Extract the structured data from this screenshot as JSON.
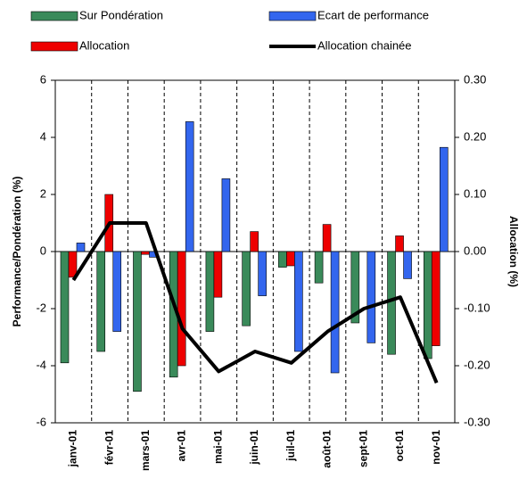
{
  "chart_data": {
    "type": "bar",
    "categories": [
      "janv-01",
      "févr-01",
      "mars-01",
      "avr-01",
      "mai-01",
      "juin-01",
      "juil-01",
      "août-01",
      "sept-01",
      "oct-01",
      "nov-01"
    ],
    "series": [
      {
        "name": "Sur Pondération",
        "type": "bar",
        "color": "#3a8a5a",
        "values": [
          -3.9,
          -3.5,
          -4.9,
          -4.4,
          -2.8,
          -2.6,
          -0.55,
          -1.1,
          -2.5,
          -3.6,
          -3.75
        ]
      },
      {
        "name": "Allocation",
        "type": "bar",
        "color": "#ee0000",
        "values": [
          -0.9,
          2.0,
          -0.1,
          -4.0,
          -1.6,
          0.7,
          -0.5,
          0.95,
          0,
          0.55,
          -3.3
        ]
      },
      {
        "name": "Ecart de performance",
        "type": "bar",
        "color": "#3366ee",
        "values": [
          0.3,
          -2.8,
          -0.2,
          4.55,
          2.55,
          -1.55,
          -3.5,
          -4.25,
          -3.2,
          -0.95,
          3.65
        ]
      },
      {
        "name": "Allocation chainée",
        "type": "line",
        "axis": "y2",
        "color": "#000000",
        "values": [
          -0.05,
          0.05,
          0.05,
          -0.135,
          -0.21,
          -0.175,
          -0.195,
          -0.14,
          -0.1,
          -0.08,
          -0.23
        ]
      }
    ],
    "ylabel": "Performance/Pondération (%)",
    "y2label": "Allocation (%)",
    "ylim": [
      -6,
      6
    ],
    "yticks": [
      -6,
      -4,
      -2,
      0,
      2,
      4,
      6
    ],
    "y2lim": [
      -0.3,
      0.3
    ],
    "y2ticks": [
      {
        "value": -0.3,
        "label": "-0.30"
      },
      {
        "value": -0.2,
        "label": "-0.20"
      },
      {
        "value": -0.1,
        "label": "-0.10"
      },
      {
        "value": 0,
        "label": "0.00"
      },
      {
        "value": 0.1,
        "label": "0.10"
      },
      {
        "value": 0.2,
        "label": "0.20"
      },
      {
        "value": 0.3,
        "label": "0.30"
      }
    ]
  }
}
